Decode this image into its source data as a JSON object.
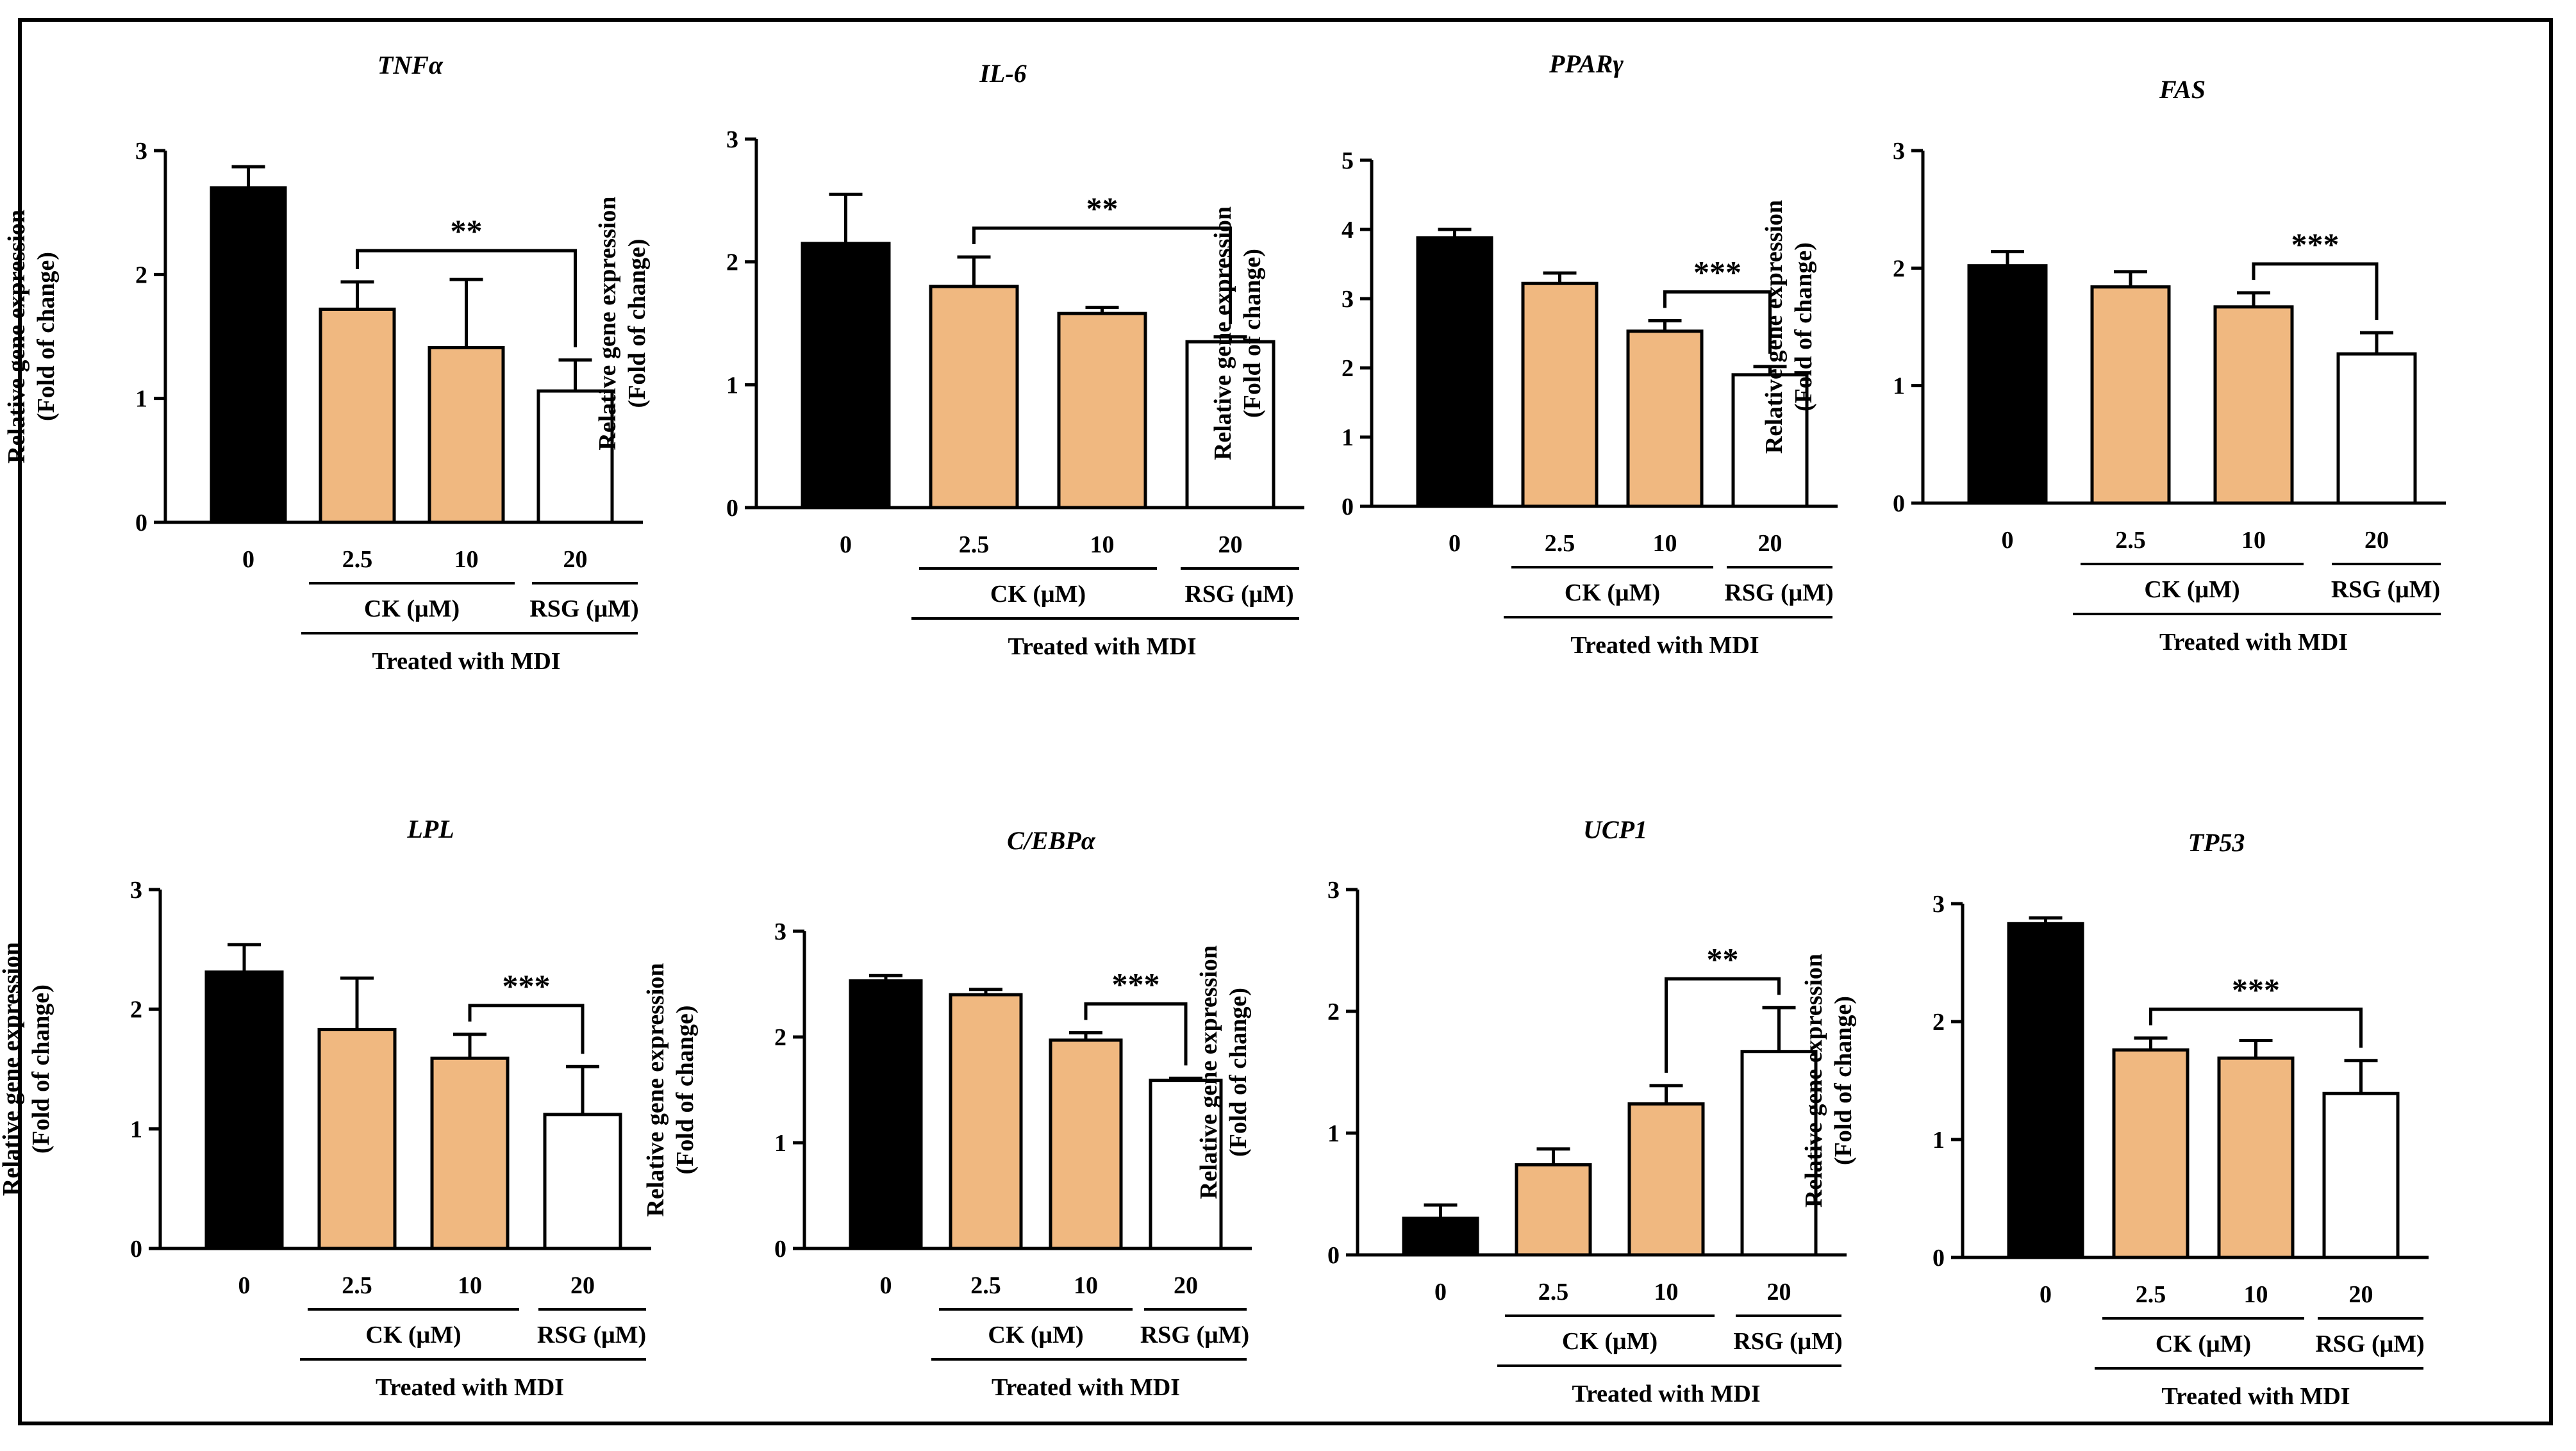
{
  "figure": {
    "colors": {
      "control": "#000000",
      "ck": "#f0b880",
      "rsg": "#ffffff",
      "stroke": "#000000"
    },
    "y_axis_label_line1": "Relative gene expression",
    "y_axis_label_line2": "(Fold of change)",
    "group_labels": {
      "ck": "CK (μM)",
      "rsg": "RSG (μM)",
      "treated": "Treated with MDI"
    }
  },
  "chart_data": [
    {
      "type": "bar",
      "title": "TNFα",
      "categories": [
        "0",
        "2.5",
        "10",
        "20"
      ],
      "values": [
        2.7,
        1.72,
        1.41,
        1.06
      ],
      "errors": [
        0.17,
        0.22,
        0.55,
        0.25
      ],
      "ylim": [
        0,
        3
      ],
      "yticks": [
        0,
        1,
        2,
        3
      ],
      "significance": {
        "label": "**",
        "from": 1,
        "to": 3
      }
    },
    {
      "type": "bar",
      "title": "IL-6",
      "categories": [
        "0",
        "2.5",
        "10",
        "20"
      ],
      "values": [
        2.15,
        1.8,
        1.58,
        1.35
      ],
      "errors": [
        0.4,
        0.24,
        0.05,
        0.04
      ],
      "ylim": [
        0,
        3
      ],
      "yticks": [
        0,
        1,
        2,
        3
      ],
      "significance": {
        "label": "**",
        "from": 1,
        "to": 3
      }
    },
    {
      "type": "bar",
      "title": "PPARγ",
      "categories": [
        "0",
        "2.5",
        "10",
        "20"
      ],
      "values": [
        3.88,
        3.22,
        2.53,
        1.9
      ],
      "errors": [
        0.12,
        0.15,
        0.15,
        0.12
      ],
      "ylim": [
        0,
        5
      ],
      "yticks": [
        0,
        1,
        2,
        3,
        4,
        5
      ],
      "significance": {
        "label": "***",
        "from": 2,
        "to": 3
      }
    },
    {
      "type": "bar",
      "title": "FAS",
      "categories": [
        "0",
        "2.5",
        "10",
        "20"
      ],
      "values": [
        2.02,
        1.84,
        1.67,
        1.27
      ],
      "errors": [
        0.12,
        0.13,
        0.12,
        0.18
      ],
      "ylim": [
        0,
        3
      ],
      "yticks": [
        0,
        1,
        2,
        3
      ],
      "significance": {
        "label": "***",
        "from": 2,
        "to": 3
      }
    },
    {
      "type": "bar",
      "title": "LPL",
      "categories": [
        "0",
        "2.5",
        "10",
        "20"
      ],
      "values": [
        2.31,
        1.83,
        1.59,
        1.12
      ],
      "errors": [
        0.23,
        0.43,
        0.2,
        0.4
      ],
      "ylim": [
        0,
        3
      ],
      "yticks": [
        0,
        1,
        2,
        3
      ],
      "significance": {
        "label": "***",
        "from": 2,
        "to": 3
      }
    },
    {
      "type": "bar",
      "title": "C/EBPα",
      "categories": [
        "0",
        "2.5",
        "10",
        "20"
      ],
      "values": [
        2.53,
        2.4,
        1.97,
        1.59
      ],
      "errors": [
        0.05,
        0.05,
        0.07,
        0.02
      ],
      "ylim": [
        0,
        3
      ],
      "yticks": [
        0,
        1,
        2,
        3
      ],
      "significance": {
        "label": "***",
        "from": 2,
        "to": 3
      }
    },
    {
      "type": "bar",
      "title": "UCP1",
      "categories": [
        "0",
        "2.5",
        "10",
        "20"
      ],
      "values": [
        0.3,
        0.74,
        1.24,
        1.67
      ],
      "errors": [
        0.11,
        0.13,
        0.15,
        0.36
      ],
      "ylim": [
        0,
        3
      ],
      "yticks": [
        0,
        1,
        2,
        3
      ],
      "significance": {
        "label": "**",
        "from": 2,
        "to": 3
      }
    },
    {
      "type": "bar",
      "title": "TP53",
      "categories": [
        "0",
        "2.5",
        "10",
        "20"
      ],
      "values": [
        2.83,
        1.76,
        1.69,
        1.39
      ],
      "errors": [
        0.05,
        0.1,
        0.15,
        0.28
      ],
      "ylim": [
        0,
        3
      ],
      "yticks": [
        0,
        1,
        2,
        3
      ],
      "significance": {
        "label": "***",
        "from": 1,
        "to": 3
      }
    }
  ]
}
